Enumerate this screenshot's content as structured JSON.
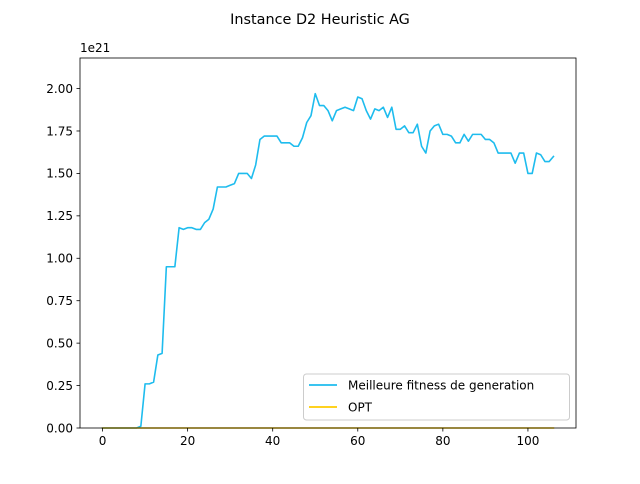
{
  "chart_data": {
    "type": "line",
    "title": "Instance D2 Heuristic AG",
    "xlabel": "",
    "ylabel": "",
    "y_offset_label": "1e21",
    "xlim": [
      -5.3,
      111.3
    ],
    "ylim": [
      0,
      2.18
    ],
    "x_ticks": [
      0,
      20,
      40,
      60,
      80,
      100
    ],
    "x_tick_labels": [
      "0",
      "20",
      "40",
      "60",
      "80",
      "100"
    ],
    "y_ticks": [
      0,
      0.25,
      0.5,
      0.75,
      1.0,
      1.25,
      1.5,
      1.75,
      2.0
    ],
    "y_tick_labels": [
      "0.00",
      "0.25",
      "0.50",
      "0.75",
      "1.00",
      "1.25",
      "1.50",
      "1.75",
      "2.00"
    ],
    "grid": false,
    "legend_position": "lower right",
    "series": [
      {
        "name": "Meilleure fitness de generation",
        "color": "#1ebcee",
        "x": [
          0,
          1,
          2,
          3,
          4,
          5,
          6,
          7,
          8,
          9,
          10,
          11,
          12,
          13,
          14,
          15,
          16,
          17,
          18,
          19,
          20,
          21,
          22,
          23,
          24,
          25,
          26,
          27,
          28,
          29,
          30,
          31,
          32,
          33,
          34,
          35,
          36,
          37,
          38,
          39,
          40,
          41,
          42,
          43,
          44,
          45,
          46,
          47,
          48,
          49,
          50,
          51,
          52,
          53,
          54,
          55,
          56,
          57,
          58,
          59,
          60,
          61,
          62,
          63,
          64,
          65,
          66,
          67,
          68,
          69,
          70,
          71,
          72,
          73,
          74,
          75,
          76,
          77,
          78,
          79,
          80,
          81,
          82,
          83,
          84,
          85,
          86,
          87,
          88,
          89,
          90,
          91,
          92,
          93,
          94,
          95,
          96,
          97,
          98,
          99,
          100,
          101,
          102,
          103,
          104,
          105,
          106
        ],
        "values": [
          0,
          0,
          0,
          0,
          0,
          0,
          0,
          0,
          0,
          0.01,
          0.26,
          0.26,
          0.27,
          0.43,
          0.44,
          0.95,
          0.95,
          0.95,
          1.18,
          1.17,
          1.18,
          1.18,
          1.17,
          1.17,
          1.21,
          1.23,
          1.29,
          1.42,
          1.42,
          1.42,
          1.43,
          1.44,
          1.5,
          1.5,
          1.5,
          1.47,
          1.55,
          1.7,
          1.72,
          1.72,
          1.72,
          1.72,
          1.68,
          1.68,
          1.68,
          1.66,
          1.66,
          1.71,
          1.8,
          1.84,
          1.97,
          1.9,
          1.9,
          1.87,
          1.81,
          1.87,
          1.88,
          1.89,
          1.88,
          1.87,
          1.95,
          1.94,
          1.87,
          1.82,
          1.88,
          1.87,
          1.89,
          1.83,
          1.89,
          1.76,
          1.76,
          1.78,
          1.74,
          1.74,
          1.79,
          1.66,
          1.62,
          1.75,
          1.78,
          1.79,
          1.73,
          1.73,
          1.72,
          1.68,
          1.68,
          1.73,
          1.69,
          1.73,
          1.73,
          1.73,
          1.7,
          1.7,
          1.68,
          1.62,
          1.62,
          1.62,
          1.62,
          1.56,
          1.62,
          1.62,
          1.5,
          1.5,
          1.62,
          1.61,
          1.57,
          1.57,
          1.6
        ]
      },
      {
        "name": "OPT",
        "color": "#ffcc00",
        "x": [
          0,
          106
        ],
        "values": [
          0,
          0
        ]
      }
    ]
  }
}
